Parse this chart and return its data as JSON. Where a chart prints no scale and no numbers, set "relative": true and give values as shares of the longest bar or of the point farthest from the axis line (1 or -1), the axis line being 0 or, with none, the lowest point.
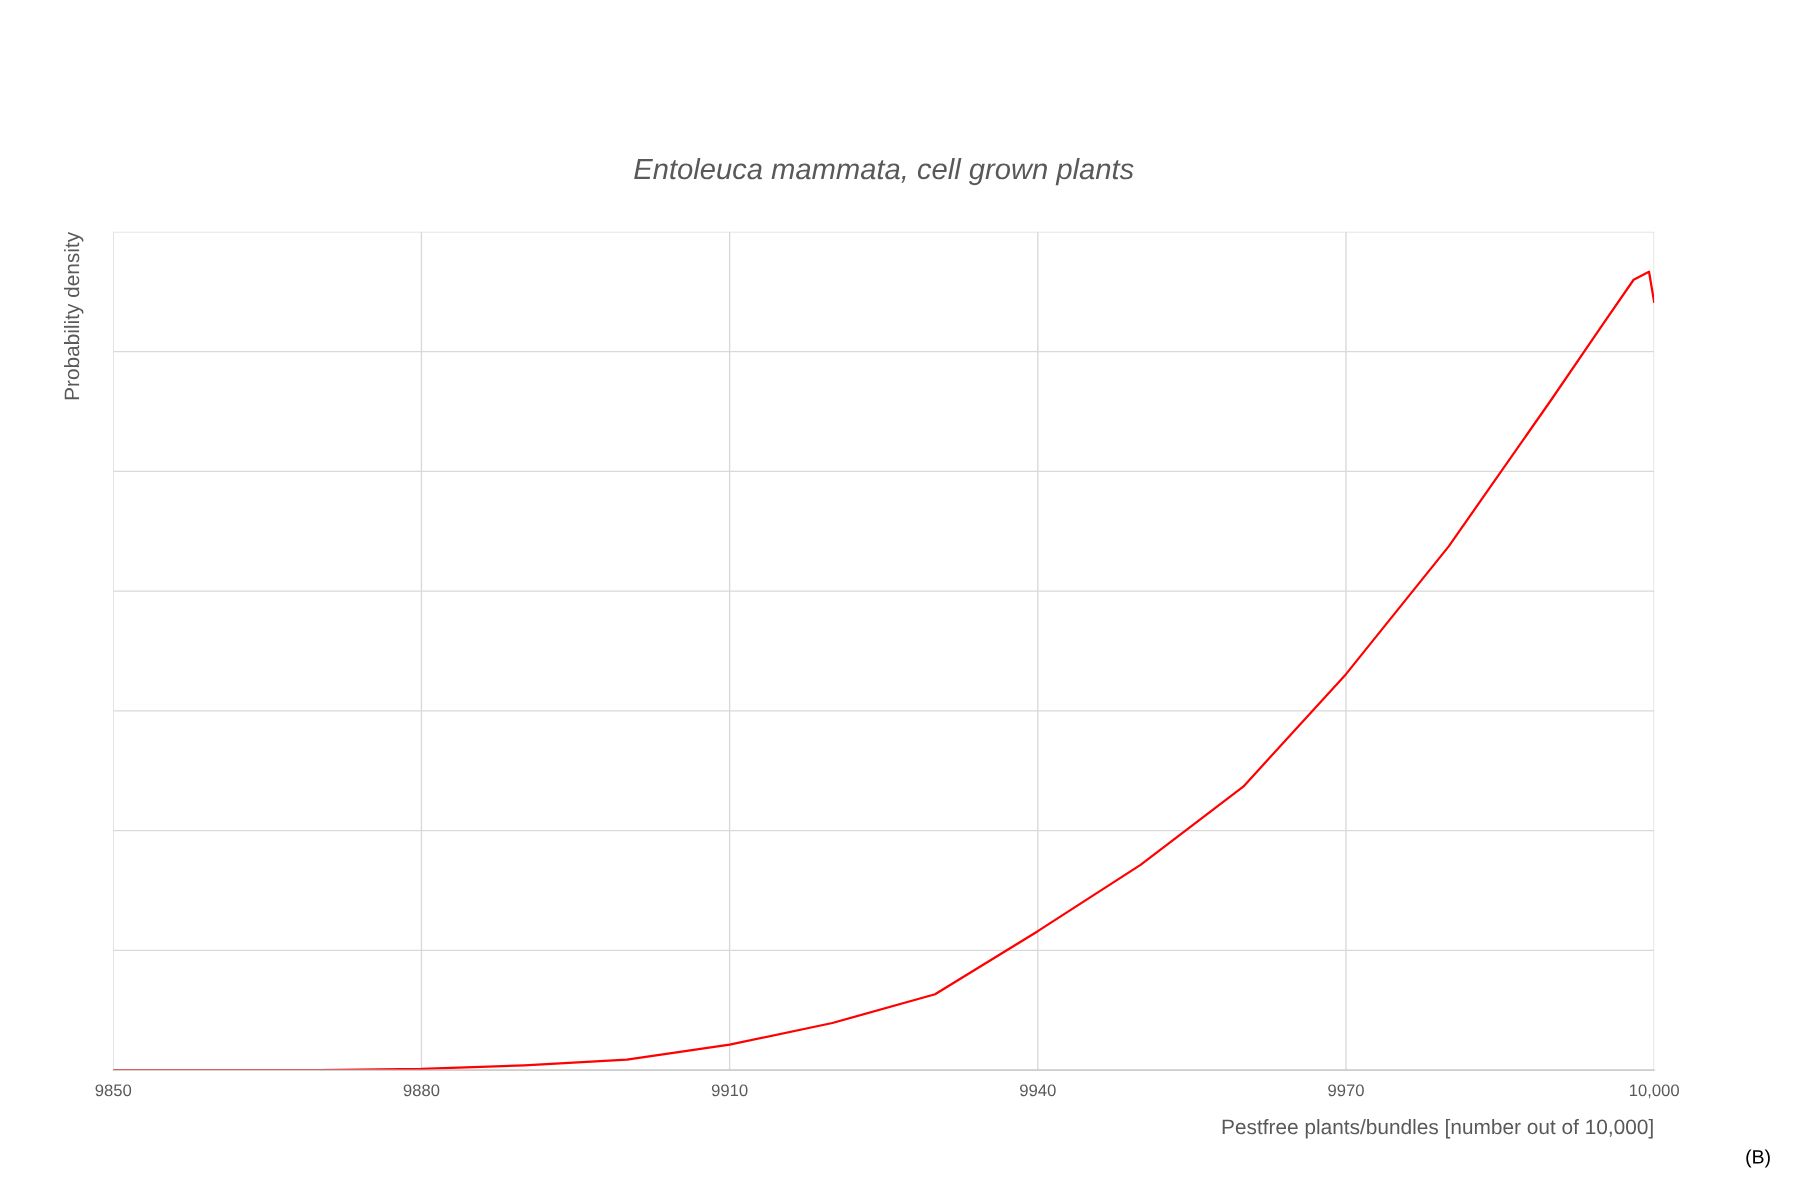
{
  "chart_data": {
    "type": "line",
    "title": "Entoleuca mammata, cell grown plants",
    "xlabel": "Pestfree plants/bundles [number out of 10,000]",
    "ylabel": "Probability density",
    "annotations": [
      "(B)"
    ],
    "relative": true,
    "x": [
      9850,
      9870,
      9880,
      9890,
      9900,
      9910,
      9920,
      9930,
      9940,
      9950,
      9960,
      9970,
      9980,
      9990,
      9995,
      9998,
      9999.5,
      10000
    ],
    "series": [
      {
        "color": "#ff0000",
        "values": [
          0,
          0,
          0.0015,
          0.006,
          0.013,
          0.032,
          0.059,
          0.095,
          0.174,
          0.257,
          0.355,
          0.496,
          0.656,
          0.84,
          0.934,
          0.99,
          1.0,
          0.962
        ]
      }
    ],
    "xlim": [
      9850,
      10000
    ],
    "xticks": [
      9850,
      9880,
      9910,
      9940,
      9970,
      {
        "value": 10000,
        "label": "10,000"
      }
    ],
    "grid": true,
    "legend": false,
    "marker": "none",
    "line_style": "solid"
  }
}
